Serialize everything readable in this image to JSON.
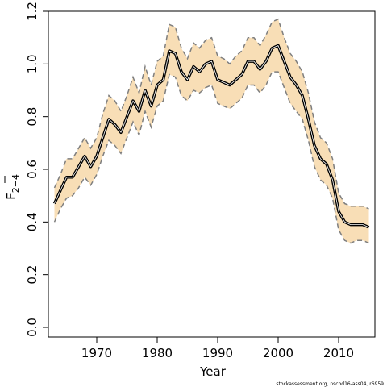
{
  "chart_data": {
    "type": "line",
    "title": "",
    "xlabel": "Year",
    "ylabel_main": "F",
    "ylabel_sub": "2−4",
    "xlim": [
      1962,
      2016
    ],
    "ylim": [
      0,
      1.2
    ],
    "x_ticks": [
      1970,
      1980,
      1990,
      2000,
      2010
    ],
    "y_ticks": [
      0.0,
      0.2,
      0.4,
      0.6,
      0.8,
      1.0,
      1.2
    ],
    "y_tick_labels": [
      "0.0",
      "0.2",
      "0.4",
      "0.6",
      "0.8",
      "1.0",
      "1.2"
    ],
    "grid": false,
    "colors": {
      "band": "#f8deb6",
      "bounds": "#7f7f7f",
      "line": "#000000",
      "line_halo": "#ffffff"
    },
    "x": [
      1963,
      1964,
      1965,
      1966,
      1967,
      1968,
      1969,
      1970,
      1971,
      1972,
      1973,
      1974,
      1975,
      1976,
      1977,
      1978,
      1979,
      1980,
      1981,
      1982,
      1983,
      1984,
      1985,
      1986,
      1987,
      1988,
      1989,
      1990,
      1991,
      1992,
      1993,
      1994,
      1995,
      1996,
      1997,
      1998,
      1999,
      2000,
      2001,
      2002,
      2003,
      2004,
      2005,
      2006,
      2007,
      2008,
      2009,
      2010,
      2011,
      2012,
      2013,
      2014,
      2015
    ],
    "series": [
      {
        "role": "estimate",
        "values": [
          0.47,
          0.52,
          0.57,
          0.57,
          0.61,
          0.65,
          0.61,
          0.65,
          0.72,
          0.79,
          0.77,
          0.74,
          0.8,
          0.86,
          0.82,
          0.9,
          0.84,
          0.92,
          0.94,
          1.05,
          1.04,
          0.97,
          0.94,
          0.99,
          0.97,
          1.0,
          1.01,
          0.94,
          0.93,
          0.92,
          0.94,
          0.96,
          1.01,
          1.01,
          0.98,
          1.01,
          1.06,
          1.07,
          1.01,
          0.95,
          0.92,
          0.88,
          0.79,
          0.69,
          0.64,
          0.62,
          0.56,
          0.44,
          0.4,
          0.39,
          0.39,
          0.39,
          0.38
        ]
      },
      {
        "role": "upper",
        "values": [
          0.53,
          0.58,
          0.64,
          0.64,
          0.68,
          0.72,
          0.68,
          0.72,
          0.81,
          0.88,
          0.86,
          0.82,
          0.88,
          0.95,
          0.89,
          0.99,
          0.92,
          1.01,
          1.03,
          1.15,
          1.14,
          1.06,
          1.02,
          1.08,
          1.06,
          1.09,
          1.1,
          1.03,
          1.02,
          1.0,
          1.03,
          1.05,
          1.1,
          1.1,
          1.07,
          1.11,
          1.16,
          1.17,
          1.1,
          1.04,
          1.01,
          0.97,
          0.89,
          0.78,
          0.72,
          0.7,
          0.64,
          0.51,
          0.47,
          0.46,
          0.46,
          0.46,
          0.45
        ]
      },
      {
        "role": "lower",
        "values": [
          0.4,
          0.45,
          0.49,
          0.5,
          0.53,
          0.57,
          0.54,
          0.58,
          0.65,
          0.71,
          0.69,
          0.66,
          0.72,
          0.78,
          0.73,
          0.82,
          0.76,
          0.84,
          0.86,
          0.96,
          0.95,
          0.88,
          0.86,
          0.9,
          0.89,
          0.91,
          0.92,
          0.85,
          0.84,
          0.83,
          0.85,
          0.87,
          0.92,
          0.92,
          0.89,
          0.92,
          0.97,
          0.97,
          0.91,
          0.85,
          0.82,
          0.79,
          0.71,
          0.61,
          0.56,
          0.54,
          0.49,
          0.37,
          0.33,
          0.32,
          0.33,
          0.33,
          0.32
        ]
      }
    ]
  },
  "credit": "stockassessment.org, nscod16-ass04, r6959"
}
